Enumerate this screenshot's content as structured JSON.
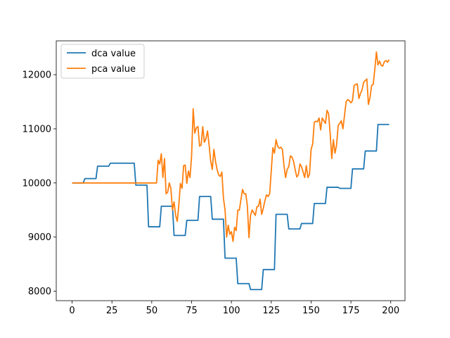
{
  "chart_data": {
    "type": "line",
    "xlim": [
      -9.95,
      208.95
    ],
    "ylim": [
      7825,
      12625
    ],
    "x_ticks": [
      0,
      25,
      50,
      75,
      100,
      125,
      150,
      175,
      200
    ],
    "y_ticks": [
      8000,
      9000,
      10000,
      11000,
      12000
    ],
    "grid": false,
    "legend_position": "top-left",
    "series": [
      {
        "name": "dca value",
        "color": "#1f77b4",
        "points": [
          [
            0,
            10000
          ],
          [
            7,
            10000
          ],
          [
            8,
            10080
          ],
          [
            15,
            10080
          ],
          [
            16,
            10310
          ],
          [
            23,
            10310
          ],
          [
            24,
            10365
          ],
          [
            39,
            10365
          ],
          [
            40,
            9960
          ],
          [
            47,
            9960
          ],
          [
            48,
            9190
          ],
          [
            55,
            9190
          ],
          [
            56,
            9570
          ],
          [
            63,
            9570
          ],
          [
            64,
            9030
          ],
          [
            71,
            9030
          ],
          [
            72,
            9310
          ],
          [
            79,
            9310
          ],
          [
            80,
            9750
          ],
          [
            87,
            9750
          ],
          [
            88,
            9330
          ],
          [
            95,
            9330
          ],
          [
            96,
            8610
          ],
          [
            103,
            8610
          ],
          [
            104,
            8140
          ],
          [
            111,
            8140
          ],
          [
            112,
            8030
          ],
          [
            119,
            8030
          ],
          [
            120,
            8400
          ],
          [
            127,
            8400
          ],
          [
            128,
            9420
          ],
          [
            135,
            9420
          ],
          [
            136,
            9150
          ],
          [
            143,
            9150
          ],
          [
            144,
            9250
          ],
          [
            151,
            9250
          ],
          [
            152,
            9620
          ],
          [
            159,
            9620
          ],
          [
            160,
            9920
          ],
          [
            167,
            9920
          ],
          [
            168,
            9900
          ],
          [
            175,
            9900
          ],
          [
            176,
            10260
          ],
          [
            183,
            10260
          ],
          [
            184,
            10590
          ],
          [
            191,
            10590
          ],
          [
            192,
            11080
          ],
          [
            199,
            11080
          ]
        ]
      },
      {
        "name": "pca value",
        "color": "#ff7f0e",
        "points": [
          [
            0,
            10000
          ],
          [
            53,
            10000
          ],
          [
            54,
            10420
          ],
          [
            55,
            10350
          ],
          [
            56,
            10540
          ],
          [
            57,
            10100
          ],
          [
            58,
            10450
          ],
          [
            59,
            9800
          ],
          [
            60,
            9830
          ],
          [
            61,
            10000
          ],
          [
            62,
            9900
          ],
          [
            63,
            9500
          ],
          [
            64,
            9650
          ],
          [
            65,
            9400
          ],
          [
            66,
            9290
          ],
          [
            67,
            9600
          ],
          [
            68,
            9990
          ],
          [
            69,
            9900
          ],
          [
            70,
            10320
          ],
          [
            71,
            10330
          ],
          [
            72,
            9990
          ],
          [
            73,
            10220
          ],
          [
            74,
            10100
          ],
          [
            75,
            10500
          ],
          [
            76,
            11370
          ],
          [
            77,
            10920
          ],
          [
            78,
            11020
          ],
          [
            79,
            11040
          ],
          [
            80,
            10680
          ],
          [
            81,
            10700
          ],
          [
            82,
            11040
          ],
          [
            83,
            10750
          ],
          [
            84,
            10820
          ],
          [
            85,
            10960
          ],
          [
            86,
            10700
          ],
          [
            87,
            10400
          ],
          [
            88,
            10250
          ],
          [
            89,
            10620
          ],
          [
            90,
            10400
          ],
          [
            91,
            10250
          ],
          [
            92,
            10150
          ],
          [
            93,
            10120
          ],
          [
            94,
            10200
          ],
          [
            95,
            9720
          ],
          [
            96,
            9500
          ],
          [
            97,
            9000
          ],
          [
            98,
            9220
          ],
          [
            99,
            9050
          ],
          [
            100,
            9100
          ],
          [
            101,
            8920
          ],
          [
            102,
            9180
          ],
          [
            103,
            9120
          ],
          [
            104,
            9500
          ],
          [
            105,
            9500
          ],
          [
            106,
            9700
          ],
          [
            107,
            9880
          ],
          [
            108,
            9800
          ],
          [
            109,
            9800
          ],
          [
            110,
            9580
          ],
          [
            111,
            8990
          ],
          [
            112,
            9400
          ],
          [
            113,
            9500
          ],
          [
            114,
            9450
          ],
          [
            115,
            9400
          ],
          [
            116,
            9560
          ],
          [
            117,
            9570
          ],
          [
            118,
            9700
          ],
          [
            119,
            9420
          ],
          [
            120,
            9530
          ],
          [
            121,
            9670
          ],
          [
            122,
            9780
          ],
          [
            123,
            9750
          ],
          [
            124,
            9800
          ],
          [
            125,
            10220
          ],
          [
            126,
            10650
          ],
          [
            127,
            10550
          ],
          [
            128,
            10800
          ],
          [
            129,
            10680
          ],
          [
            130,
            10640
          ],
          [
            131,
            10660
          ],
          [
            132,
            10620
          ],
          [
            133,
            10320
          ],
          [
            134,
            10100
          ],
          [
            135,
            10250
          ],
          [
            136,
            10300
          ],
          [
            137,
            10500
          ],
          [
            138,
            10480
          ],
          [
            139,
            10400
          ],
          [
            140,
            10250
          ],
          [
            141,
            10110
          ],
          [
            142,
            10150
          ],
          [
            143,
            10350
          ],
          [
            144,
            10300
          ],
          [
            145,
            10200
          ],
          [
            146,
            10100
          ],
          [
            147,
            10320
          ],
          [
            148,
            10100
          ],
          [
            149,
            10160
          ],
          [
            150,
            10620
          ],
          [
            151,
            10720
          ],
          [
            152,
            11120
          ],
          [
            153,
            11140
          ],
          [
            154,
            11130
          ],
          [
            155,
            11200
          ],
          [
            156,
            10980
          ],
          [
            157,
            11200
          ],
          [
            158,
            11150
          ],
          [
            159,
            11100
          ],
          [
            160,
            11340
          ],
          [
            161,
            11280
          ],
          [
            162,
            10900
          ],
          [
            163,
            10450
          ],
          [
            164,
            10800
          ],
          [
            165,
            10550
          ],
          [
            166,
            10700
          ],
          [
            167,
            11060
          ],
          [
            168,
            11100
          ],
          [
            169,
            11150
          ],
          [
            170,
            11000
          ],
          [
            171,
            11250
          ],
          [
            172,
            11500
          ],
          [
            173,
            11540
          ],
          [
            174,
            11520
          ],
          [
            175,
            11480
          ],
          [
            176,
            11520
          ],
          [
            177,
            11800
          ],
          [
            178,
            11820
          ],
          [
            179,
            11830
          ],
          [
            180,
            11560
          ],
          [
            181,
            11650
          ],
          [
            182,
            11720
          ],
          [
            183,
            11860
          ],
          [
            184,
            11890
          ],
          [
            185,
            11920
          ],
          [
            186,
            11450
          ],
          [
            187,
            11580
          ],
          [
            188,
            11800
          ],
          [
            189,
            11820
          ],
          [
            190,
            12100
          ],
          [
            191,
            12420
          ],
          [
            192,
            12180
          ],
          [
            193,
            12250
          ],
          [
            194,
            12170
          ],
          [
            195,
            12160
          ],
          [
            196,
            12240
          ],
          [
            197,
            12260
          ],
          [
            198,
            12230
          ],
          [
            199,
            12280
          ]
        ]
      }
    ]
  }
}
